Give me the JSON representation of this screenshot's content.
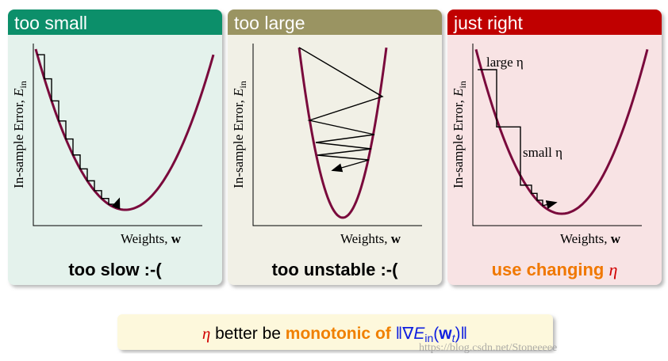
{
  "panels": [
    {
      "title": "too small",
      "y_label": "In-sample Error, ",
      "y_symbol": "E",
      "y_sub": "in",
      "x_label": "Weights, ",
      "x_symbol": "w",
      "caption": "too slow :-("
    },
    {
      "title": "too large",
      "y_label": "In-sample Error, ",
      "y_symbol": "E",
      "y_sub": "in",
      "x_label": "Weights, ",
      "x_symbol": "w",
      "caption": "too unstable :-("
    },
    {
      "title": "just right",
      "y_label": "In-sample Error, ",
      "y_symbol": "E",
      "y_sub": "in",
      "x_label": "Weights, ",
      "x_symbol": "w",
      "caption": "use changing ",
      "caption_symbol": "η",
      "annotations": [
        "large η",
        "small η"
      ]
    }
  ],
  "footer": {
    "symbol": "η",
    "text": " better be ",
    "emphasis": "monotonic of",
    "norm_open": " ‖∇",
    "norm_symbol": "E",
    "norm_sub": "in",
    "paren_open": "(",
    "arg": "w",
    "arg_sub": "t",
    "norm_close": ")‖"
  },
  "watermark": "https://blog.csdn.net/Stoneeeee"
}
